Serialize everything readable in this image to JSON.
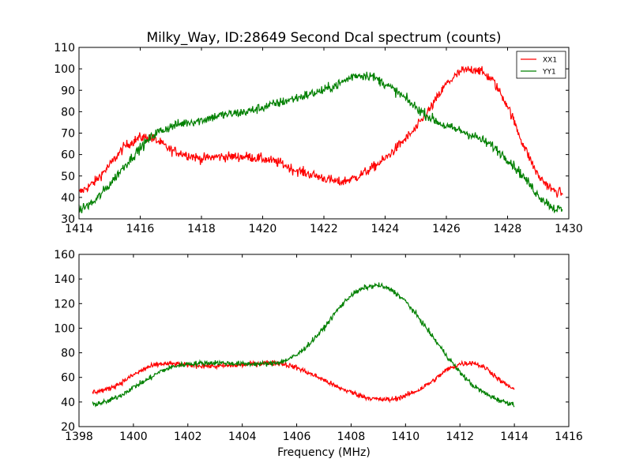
{
  "figure": {
    "title": "Milky_Way, ID:28649 Second Dcal spectrum (counts)",
    "background": "#ffffff"
  },
  "chart_data": [
    {
      "type": "line",
      "title": "Milky_Way, ID:28649 Second Dcal spectrum (counts)",
      "xlabel": "",
      "ylabel": "",
      "xlim": [
        1414,
        1430
      ],
      "ylim": [
        30,
        110
      ],
      "xticks": [
        1414,
        1416,
        1418,
        1420,
        1422,
        1424,
        1426,
        1428,
        1430
      ],
      "yticks": [
        30,
        40,
        50,
        60,
        70,
        80,
        90,
        100,
        110
      ],
      "grid": false,
      "legend": {
        "placement": "top-right"
      },
      "series": [
        {
          "name": "XX1",
          "color": "#ff0000",
          "x": [
            1414.0,
            1414.5,
            1415.0,
            1415.5,
            1416.0,
            1416.3,
            1416.6,
            1417.0,
            1417.5,
            1418.0,
            1418.5,
            1419.0,
            1419.5,
            1420.0,
            1420.3,
            1420.6,
            1421.0,
            1421.5,
            1422.0,
            1422.5,
            1423.0,
            1423.5,
            1424.0,
            1424.5,
            1425.0,
            1425.5,
            1426.0,
            1426.5,
            1427.0,
            1427.5,
            1428.0,
            1428.5,
            1429.0,
            1429.5,
            1429.8
          ],
          "y": [
            42,
            47,
            55,
            64,
            68,
            68,
            66,
            62,
            60,
            58,
            59,
            59,
            59,
            58,
            57,
            56,
            53,
            51,
            49,
            47,
            49,
            53,
            58,
            65,
            72,
            82,
            93,
            99,
            100,
            95,
            83,
            65,
            50,
            43,
            42
          ]
        },
        {
          "name": "YY1",
          "color": "#008000",
          "x": [
            1414.0,
            1414.5,
            1415.0,
            1415.5,
            1416.0,
            1416.5,
            1417.0,
            1417.5,
            1418.0,
            1418.5,
            1419.0,
            1419.5,
            1420.0,
            1420.5,
            1421.0,
            1421.5,
            1422.0,
            1422.5,
            1423.0,
            1423.5,
            1424.0,
            1424.5,
            1425.0,
            1425.5,
            1426.0,
            1426.5,
            1427.0,
            1427.5,
            1428.0,
            1428.5,
            1429.0,
            1429.5,
            1429.8
          ],
          "y": [
            34,
            38,
            46,
            55,
            63,
            70,
            73,
            75,
            76,
            78,
            79,
            80,
            82,
            84,
            86,
            88,
            90,
            93,
            97,
            97,
            93,
            88,
            82,
            77,
            73,
            71,
            68,
            64,
            58,
            50,
            41,
            35,
            34
          ]
        }
      ]
    },
    {
      "type": "line",
      "title": "",
      "xlabel": "Frequency (MHz)",
      "ylabel": "",
      "xlim": [
        1398,
        1416
      ],
      "ylim": [
        20,
        160
      ],
      "xticks": [
        1398,
        1400,
        1402,
        1404,
        1406,
        1408,
        1410,
        1412,
        1414,
        1416
      ],
      "yticks": [
        20,
        40,
        60,
        80,
        100,
        120,
        140,
        160
      ],
      "grid": false,
      "series": [
        {
          "color": "#ff0000",
          "x": [
            1398.5,
            1399.0,
            1399.5,
            1400.0,
            1400.5,
            1401.0,
            1401.5,
            1402.0,
            1403.0,
            1404.0,
            1405.0,
            1405.5,
            1406.0,
            1406.5,
            1407.0,
            1407.5,
            1408.0,
            1408.5,
            1409.0,
            1409.5,
            1410.0,
            1410.5,
            1411.0,
            1411.5,
            1412.0,
            1412.5,
            1413.0,
            1413.5,
            1414.0
          ],
          "y": [
            48,
            50,
            55,
            62,
            68,
            71,
            71,
            70,
            69,
            70,
            72,
            71,
            68,
            63,
            58,
            52,
            48,
            44,
            42,
            42,
            45,
            50,
            57,
            66,
            71,
            72,
            67,
            57,
            50
          ]
        },
        {
          "color": "#008000",
          "x": [
            1398.5,
            1399.0,
            1399.5,
            1400.0,
            1400.5,
            1401.0,
            1401.5,
            1402.0,
            1403.0,
            1404.0,
            1405.0,
            1405.5,
            1406.0,
            1406.5,
            1407.0,
            1407.5,
            1408.0,
            1408.5,
            1409.0,
            1409.5,
            1410.0,
            1410.5,
            1411.0,
            1411.5,
            1412.0,
            1412.5,
            1413.0,
            1413.5,
            1414.0
          ],
          "y": [
            38,
            40,
            45,
            52,
            58,
            65,
            69,
            71,
            72,
            71,
            71,
            73,
            78,
            88,
            100,
            115,
            127,
            133,
            135,
            131,
            122,
            108,
            93,
            78,
            64,
            53,
            46,
            41,
            38
          ]
        }
      ]
    }
  ]
}
